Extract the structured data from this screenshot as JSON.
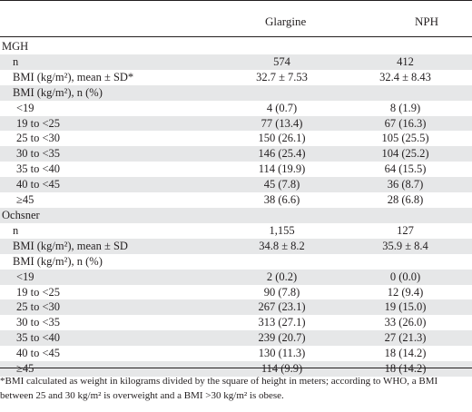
{
  "header": {
    "col_label": "",
    "col_glargine": "Glargine",
    "col_nph": "NPH"
  },
  "rows": [
    {
      "type": "section",
      "label": "MGH",
      "glargine": "",
      "nph": "",
      "shaded": false
    },
    {
      "type": "row",
      "label": "n",
      "glargine": "574",
      "nph": "412",
      "shaded": true
    },
    {
      "type": "row",
      "label": "BMI (kg/m²), mean ± SD*",
      "glargine": "32.7 ± 7.53",
      "nph": "32.4 ± 8.43",
      "shaded": false
    },
    {
      "type": "row",
      "label": "BMI (kg/m²), n (%)",
      "glargine": "",
      "nph": "",
      "shaded": true
    },
    {
      "type": "sub",
      "label": "<19",
      "glargine": "4 (0.7)",
      "nph": "8 (1.9)",
      "shaded": false
    },
    {
      "type": "sub",
      "label": "19 to <25",
      "glargine": "77 (13.4)",
      "nph": "67 (16.3)",
      "shaded": true
    },
    {
      "type": "sub",
      "label": "25 to <30",
      "glargine": "150 (26.1)",
      "nph": "105 (25.5)",
      "shaded": false
    },
    {
      "type": "sub",
      "label": "30 to <35",
      "glargine": "146 (25.4)",
      "nph": "104 (25.2)",
      "shaded": true
    },
    {
      "type": "sub",
      "label": "35 to <40",
      "glargine": "114 (19.9)",
      "nph": "64 (15.5)",
      "shaded": false
    },
    {
      "type": "sub",
      "label": "40 to <45",
      "glargine": "45 (7.8)",
      "nph": "36 (8.7)",
      "shaded": true
    },
    {
      "type": "sub",
      "label": "≥45",
      "glargine": "38 (6.6)",
      "nph": "28 (6.8)",
      "shaded": false
    },
    {
      "type": "section",
      "label": "Ochsner",
      "glargine": "",
      "nph": "",
      "shaded": true
    },
    {
      "type": "row",
      "label": "n",
      "glargine": "1,155",
      "nph": "127",
      "shaded": false
    },
    {
      "type": "row",
      "label": "BMI (kg/m²), mean ± SD",
      "glargine": "34.8 ± 8.2",
      "nph": "35.9 ± 8.4",
      "shaded": true
    },
    {
      "type": "row",
      "label": "BMI (kg/m²), n (%)",
      "glargine": "",
      "nph": "",
      "shaded": false
    },
    {
      "type": "sub",
      "label": "<19",
      "glargine": "2 (0.2)",
      "nph": "0 (0.0)",
      "shaded": true
    },
    {
      "type": "sub",
      "label": "19 to <25",
      "glargine": "90 (7.8)",
      "nph": "12 (9.4)",
      "shaded": false
    },
    {
      "type": "sub",
      "label": "25 to <30",
      "glargine": "267 (23.1)",
      "nph": "19 (15.0)",
      "shaded": true
    },
    {
      "type": "sub",
      "label": "30 to <35",
      "glargine": "313 (27.1)",
      "nph": "33 (26.0)",
      "shaded": false
    },
    {
      "type": "sub",
      "label": "35 to <40",
      "glargine": "239 (20.7)",
      "nph": "27 (21.3)",
      "shaded": true
    },
    {
      "type": "sub",
      "label": "40 to <45",
      "glargine": "130 (11.3)",
      "nph": "18 (14.2)",
      "shaded": false
    },
    {
      "type": "sub",
      "label": "≥45",
      "glargine": "114 (9.9)",
      "nph": "18 (14.2)",
      "shaded": true
    }
  ],
  "footnote": {
    "line1": "*BMI calculated as weight in kilograms divided by the square of height in meters; according to WHO, a BMI",
    "line2": "between 25 and 30 kg/m² is overweight and a BMI >30 kg/m² is obese."
  },
  "colors": {
    "shade": "#e6e7e8",
    "text": "#231f20",
    "rule": "#231f20"
  }
}
